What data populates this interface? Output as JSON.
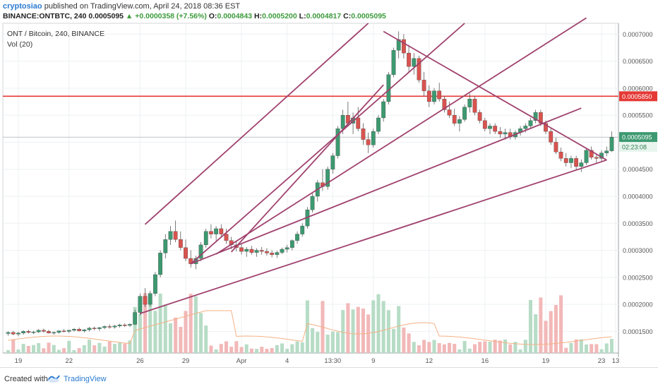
{
  "header": {
    "user": "cryptosiao",
    "published": "published on TradingView.com, April 24, 2018 08:36 EST",
    "symbol": "BINANCE:ONTBTC, 240",
    "change": "+0.0000358 (+7.56%)",
    "ohlc": {
      "o_label": "O:",
      "o": "0.0004843",
      "h_label": "H:",
      "h": "0.0005200",
      "l_label": "L:",
      "l": "0.0004817",
      "c_label": "C:",
      "c": "0.0005095"
    },
    "last": "0.0005095"
  },
  "legend": {
    "title": "ONT / Bitcoin, 240, BINANCE",
    "volume": "Vol (20)"
  },
  "footer": {
    "created_with": "Created with",
    "brand": "TradingView"
  },
  "colors": {
    "up": "#3d9970",
    "down": "#d9534f",
    "trend": "#a0426e",
    "resistance": "#e53935",
    "grid": "#eef0f2",
    "vol_up": "#b7dcc6",
    "vol_down": "#f2b8b8",
    "ma": "#f4b183"
  },
  "chart_data": {
    "type": "candlestick",
    "x_ticks": [
      "19",
      "22",
      "26",
      "29",
      "Apr",
      "4",
      "13:30",
      "9",
      "12",
      "16",
      "19",
      "23",
      "13"
    ],
    "y_ticks": [
      "0.0007000",
      "0.0006500",
      "0.0006000",
      "0.0005500",
      "0.0005000",
      "0.0004500",
      "0.0004000",
      "0.0003500",
      "0.0003000",
      "0.0002500",
      "0.0002000",
      "0.0001500"
    ],
    "ylim": [
      0.00011,
      0.00072
    ],
    "price_labels": {
      "resistance": "0.0005850",
      "last": "0.0005095",
      "countdown": "02:23:08"
    },
    "resistance_level": 0.000585,
    "candles": [
      [
        0.000146,
        0.00015,
        0.000142,
        0.000148
      ],
      [
        0.000148,
        0.000151,
        0.000143,
        0.000145
      ],
      [
        0.000145,
        0.000149,
        0.000141,
        0.000147
      ],
      [
        0.000147,
        0.000152,
        0.000144,
        0.00015
      ],
      [
        0.00015,
        0.000153,
        0.000146,
        0.000148
      ],
      [
        0.000148,
        0.000151,
        0.000145,
        0.000149
      ],
      [
        0.000149,
        0.000154,
        0.000147,
        0.000152
      ],
      [
        0.000152,
        0.000155,
        0.000148,
        0.00015
      ],
      [
        0.00015,
        0.000153,
        0.000146,
        0.000147
      ],
      [
        0.000147,
        0.00015,
        0.000144,
        0.000148
      ],
      [
        0.000148,
        0.000152,
        0.000146,
        0.000151
      ],
      [
        0.000151,
        0.000154,
        0.000148,
        0.00015
      ],
      [
        0.00015,
        0.000153,
        0.000147,
        0.000152
      ],
      [
        0.000152,
        0.000156,
        0.000149,
        0.000154
      ],
      [
        0.000154,
        0.000157,
        0.00015,
        0.000151
      ],
      [
        0.000151,
        0.000154,
        0.000148,
        0.000153
      ],
      [
        0.000153,
        0.000158,
        0.00015,
        0.000156
      ],
      [
        0.000156,
        0.000159,
        0.000152,
        0.000155
      ],
      [
        0.000155,
        0.000158,
        0.000151,
        0.000157
      ],
      [
        0.000157,
        0.000161,
        0.000154,
        0.000159
      ],
      [
        0.000159,
        0.000163,
        0.000155,
        0.000158
      ],
      [
        0.000158,
        0.000162,
        0.000155,
        0.00016
      ],
      [
        0.00016,
        0.000164,
        0.000157,
        0.000162
      ],
      [
        0.000162,
        0.000165,
        0.000158,
        0.000161
      ],
      [
        0.000161,
        0.000165,
        0.000158,
        0.000163
      ],
      [
        0.000163,
        0.00019,
        0.000162,
        0.000185
      ],
      [
        0.000185,
        0.00022,
        0.00018,
        0.000215
      ],
      [
        0.000215,
        0.00023,
        0.000195,
        0.0002
      ],
      [
        0.0002,
        0.000225,
        0.000196,
        0.00022
      ],
      [
        0.00022,
        0.00026,
        0.000215,
        0.000255
      ],
      [
        0.000255,
        0.0003,
        0.00025,
        0.000295
      ],
      [
        0.000295,
        0.00033,
        0.000285,
        0.00032
      ],
      [
        0.00032,
        0.000345,
        0.00031,
        0.000335
      ],
      [
        0.000335,
        0.000355,
        0.000315,
        0.00032
      ],
      [
        0.00032,
        0.000335,
        0.0003,
        0.000305
      ],
      [
        0.000305,
        0.00032,
        0.00028,
        0.000285
      ],
      [
        0.000285,
        0.0003,
        0.000268,
        0.000275
      ],
      [
        0.000275,
        0.00029,
        0.000265,
        0.000285
      ],
      [
        0.000285,
        0.000315,
        0.00028,
        0.00031
      ],
      [
        0.00031,
        0.00034,
        0.000305,
        0.000335
      ],
      [
        0.000335,
        0.000348,
        0.000322,
        0.00033
      ],
      [
        0.00033,
        0.000345,
        0.000318,
        0.00034
      ],
      [
        0.00034,
        0.000348,
        0.000325,
        0.00033
      ],
      [
        0.00033,
        0.00034,
        0.000312,
        0.000318
      ],
      [
        0.000318,
        0.000325,
        0.000302,
        0.00031
      ],
      [
        0.00031,
        0.000318,
        0.000298,
        0.000305
      ],
      [
        0.000305,
        0.000312,
        0.000292,
        0.000298
      ],
      [
        0.000298,
        0.000306,
        0.000288,
        0.000302
      ],
      [
        0.000302,
        0.000308,
        0.000292,
        0.000296
      ],
      [
        0.000296,
        0.000304,
        0.000288,
        0.0003
      ],
      [
        0.0003,
        0.000306,
        0.000292,
        0.000298
      ],
      [
        0.000298,
        0.000304,
        0.00029,
        0.000295
      ],
      [
        0.000295,
        0.0003,
        0.000287,
        0.000292
      ],
      [
        0.000292,
        0.000299,
        0.000286,
        0.000296
      ],
      [
        0.000296,
        0.000305,
        0.000293,
        0.000302
      ],
      [
        0.000302,
        0.00031,
        0.000296,
        0.000305
      ],
      [
        0.000305,
        0.00032,
        0.0003,
        0.000318
      ],
      [
        0.000318,
        0.000335,
        0.000312,
        0.00033
      ],
      [
        0.00033,
        0.00035,
        0.000325,
        0.000345
      ],
      [
        0.000345,
        0.00038,
        0.00034,
        0.000375
      ],
      [
        0.000375,
        0.000405,
        0.00037,
        0.0004
      ],
      [
        0.0004,
        0.00043,
        0.00039,
        0.000425
      ],
      [
        0.000425,
        0.00045,
        0.00041,
        0.000418
      ],
      [
        0.000418,
        0.000455,
        0.000412,
        0.00045
      ],
      [
        0.00045,
        0.00048,
        0.000442,
        0.000475
      ],
      [
        0.000475,
        0.00053,
        0.00047,
        0.000525
      ],
      [
        0.000525,
        0.00056,
        0.000515,
        0.00055
      ],
      [
        0.00055,
        0.000575,
        0.00053,
        0.000535
      ],
      [
        0.000535,
        0.000555,
        0.000515,
        0.000545
      ],
      [
        0.000545,
        0.000565,
        0.00052,
        0.000525
      ],
      [
        0.000525,
        0.000535,
        0.000495,
        0.000505
      ],
      [
        0.000505,
        0.000518,
        0.00048,
        0.000495
      ],
      [
        0.000495,
        0.000525,
        0.00049,
        0.00052
      ],
      [
        0.00052,
        0.00055,
        0.000515,
        0.000545
      ],
      [
        0.000545,
        0.00058,
        0.000538,
        0.000575
      ],
      [
        0.000575,
        0.00063,
        0.00057,
        0.000625
      ],
      [
        0.000625,
        0.000675,
        0.00062,
        0.00067
      ],
      [
        0.00067,
        0.000705,
        0.000655,
        0.00069
      ],
      [
        0.00069,
        0.0007,
        0.000655,
        0.000665
      ],
      [
        0.000665,
        0.00068,
        0.00063,
        0.00064
      ],
      [
        0.00064,
        0.000665,
        0.000625,
        0.000655
      ],
      [
        0.000655,
        0.00066,
        0.00061,
        0.000615
      ],
      [
        0.000615,
        0.00063,
        0.000585,
        0.000595
      ],
      [
        0.000595,
        0.000605,
        0.000565,
        0.000575
      ],
      [
        0.000575,
        0.0006,
        0.00057,
        0.000595
      ],
      [
        0.000595,
        0.00061,
        0.000575,
        0.00058
      ],
      [
        0.00058,
        0.000585,
        0.000555,
        0.00056
      ],
      [
        0.00056,
        0.000575,
        0.000545,
        0.00055
      ],
      [
        0.00055,
        0.000562,
        0.00053,
        0.000535
      ],
      [
        0.000535,
        0.000548,
        0.00052,
        0.000542
      ],
      [
        0.000542,
        0.00057,
        0.000538,
        0.000565
      ],
      [
        0.000565,
        0.00059,
        0.000555,
        0.00058
      ],
      [
        0.00058,
        0.000585,
        0.00055,
        0.000555
      ],
      [
        0.000555,
        0.00056,
        0.000535,
        0.00054
      ],
      [
        0.00054,
        0.000545,
        0.00052,
        0.000525
      ],
      [
        0.000525,
        0.000535,
        0.000515,
        0.00053
      ],
      [
        0.00053,
        0.000535,
        0.000515,
        0.00052
      ],
      [
        0.00052,
        0.000528,
        0.000508,
        0.000515
      ],
      [
        0.000515,
        0.000525,
        0.000505,
        0.000518
      ],
      [
        0.000518,
        0.000525,
        0.000505,
        0.00051
      ],
      [
        0.00051,
        0.000522,
        0.000505,
        0.000518
      ],
      [
        0.000518,
        0.00053,
        0.000512,
        0.000525
      ],
      [
        0.000525,
        0.000535,
        0.000518,
        0.00053
      ],
      [
        0.00053,
        0.000545,
        0.000525,
        0.00054
      ],
      [
        0.00054,
        0.00056,
        0.000535,
        0.000555
      ],
      [
        0.000555,
        0.00056,
        0.00053,
        0.000535
      ],
      [
        0.000535,
        0.00054,
        0.000515,
        0.00052
      ],
      [
        0.00052,
        0.000525,
        0.000495,
        0.0005
      ],
      [
        0.0005,
        0.000508,
        0.000478,
        0.000482
      ],
      [
        0.000482,
        0.00049,
        0.000465,
        0.00047
      ],
      [
        0.00047,
        0.00048,
        0.000455,
        0.000462
      ],
      [
        0.000462,
        0.000475,
        0.000452,
        0.00047
      ],
      [
        0.00047,
        0.000475,
        0.000448,
        0.000455
      ],
      [
        0.000455,
        0.000468,
        0.000445,
        0.000462
      ],
      [
        0.000462,
        0.00049,
        0.000458,
        0.000485
      ],
      [
        0.000485,
        0.000492,
        0.000468,
        0.000472
      ],
      [
        0.000472,
        0.000478,
        0.00046,
        0.00047
      ],
      [
        0.00047,
        0.000485,
        0.000465,
        0.00048
      ],
      [
        0.00048,
        0.000492,
        0.000474,
        0.000484
      ],
      [
        0.000484,
        0.00052,
        0.000482,
        0.0005095
      ]
    ],
    "volume_note": "Vol (20) histogram with moving average",
    "trend_lines": [
      {
        "from": [
          26,
          0.000183
        ],
        "to": [
          118,
          0.000467
        ]
      },
      {
        "from": [
          36,
          0.000275
        ],
        "to": [
          113,
          0.000563
        ]
      },
      {
        "from": [
          36,
          0.000275
        ],
        "to": [
          90,
          0.00072
        ]
      },
      {
        "from": [
          41,
          0.000293
        ],
        "to": [
          114,
          0.00073
        ]
      },
      {
        "from": [
          44,
          0.000297
        ],
        "to": [
          74,
          0.000606
        ]
      },
      {
        "from": [
          27,
          0.000348
        ],
        "to": [
          71,
          0.00072
        ]
      },
      {
        "from": [
          74,
          0.000705
        ],
        "to": [
          118,
          0.000467
        ]
      }
    ]
  }
}
